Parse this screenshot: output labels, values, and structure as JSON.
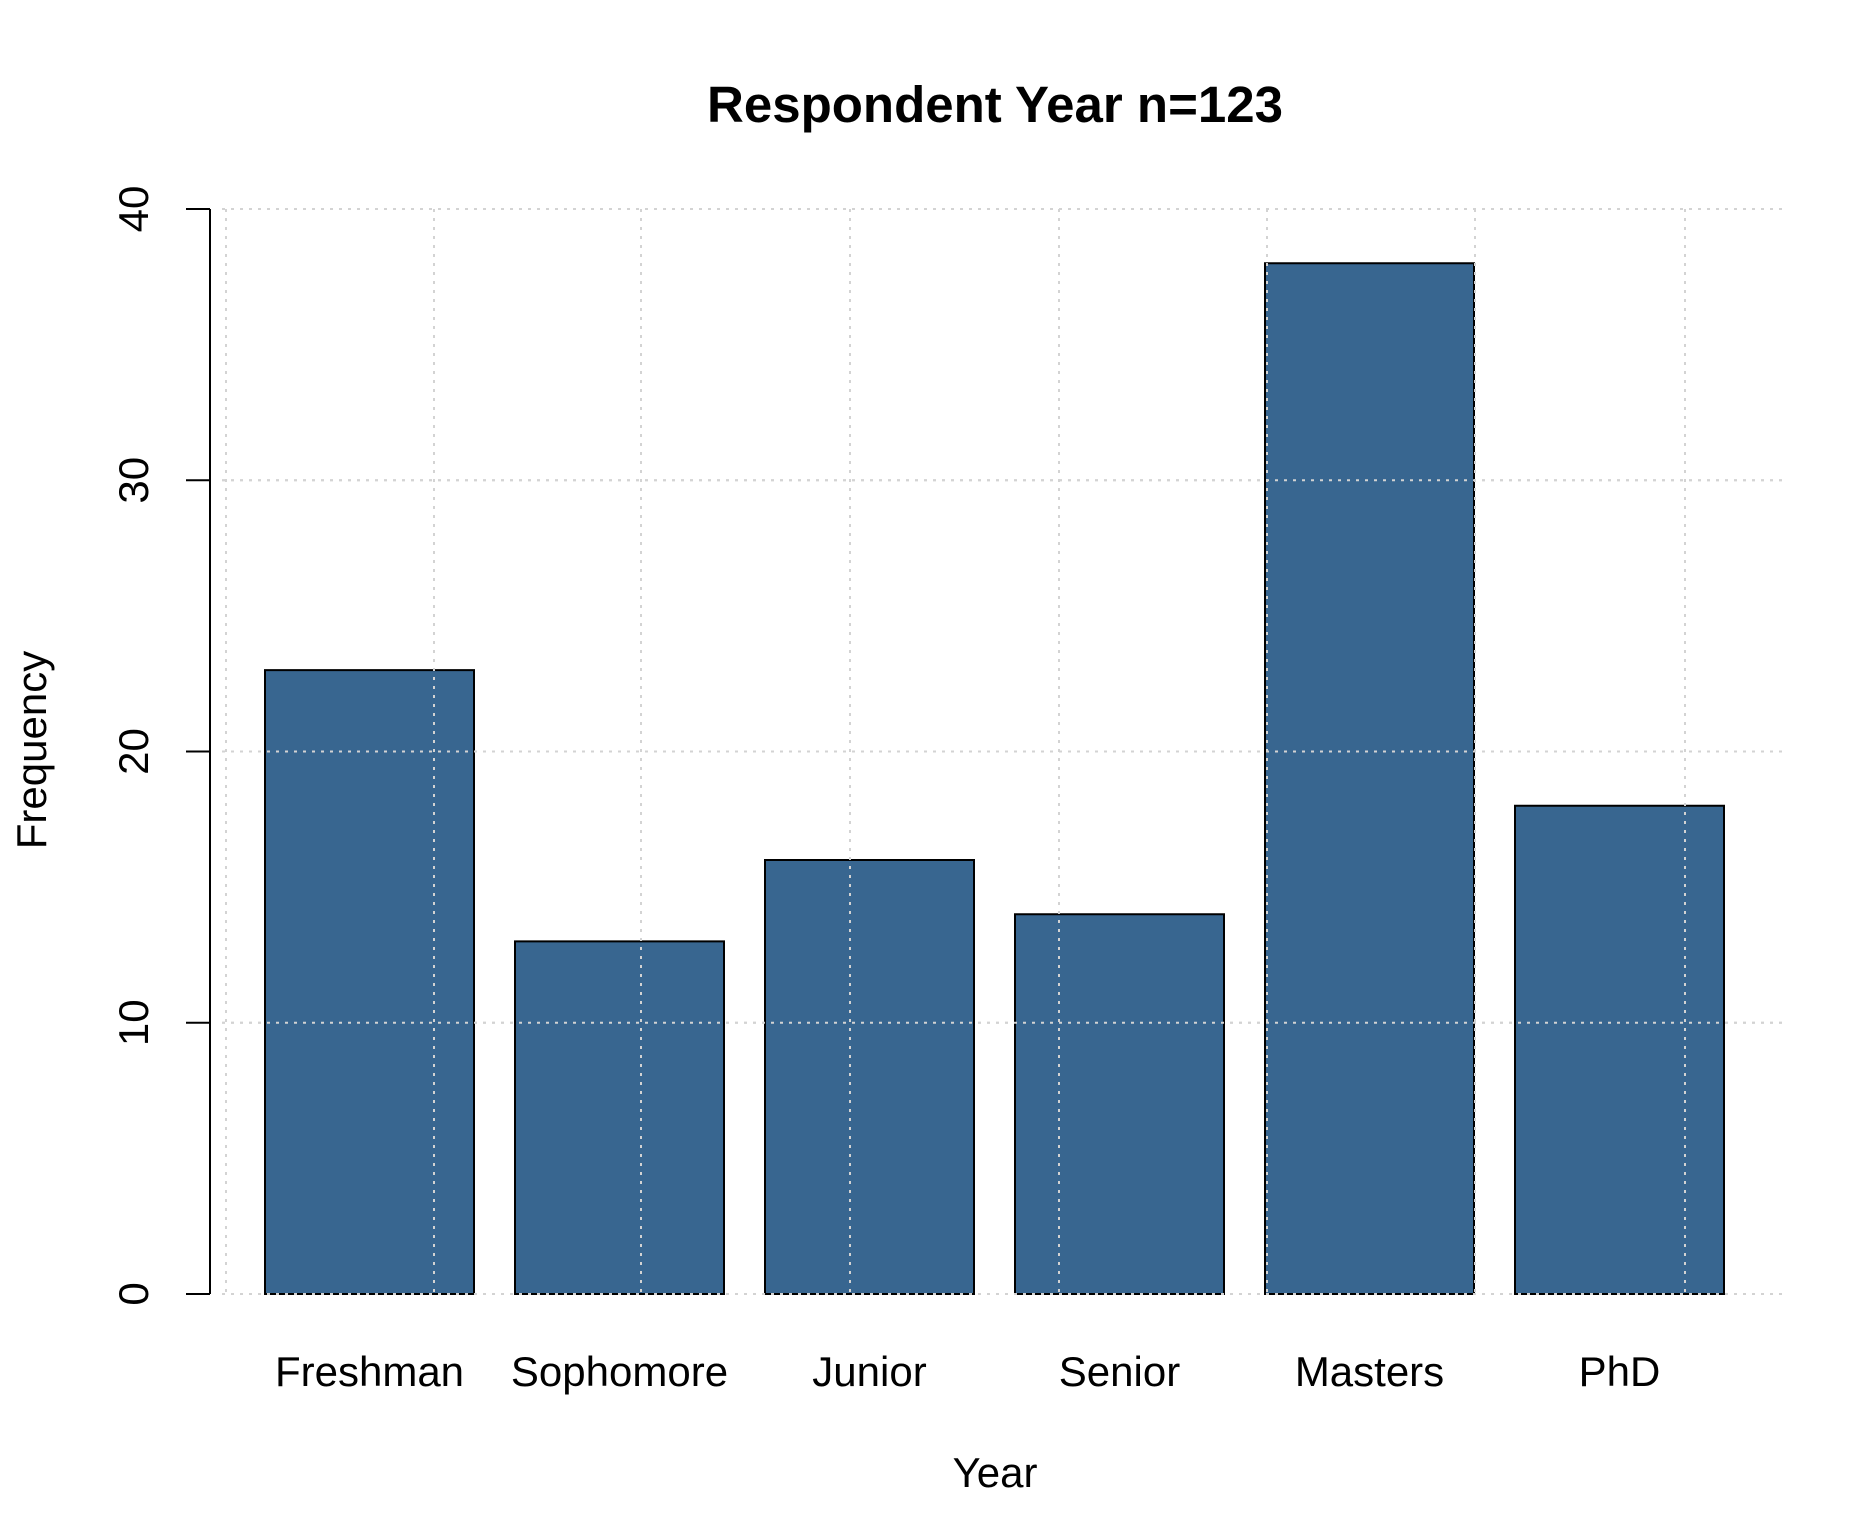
{
  "chart_data": {
    "type": "bar",
    "title": "Respondent Year n=123",
    "xlabel": "Year",
    "ylabel": "Frequency",
    "categories": [
      "Freshman",
      "Sophomore",
      "Junior",
      "Senior",
      "Masters",
      "PhD"
    ],
    "values": [
      23,
      13,
      16,
      14,
      38,
      18
    ],
    "ylim": [
      0,
      40
    ],
    "yticks": [
      0,
      10,
      20,
      30,
      40
    ],
    "grid": true,
    "bar_color": "#386690",
    "grid_color": "#d3d3d3"
  }
}
